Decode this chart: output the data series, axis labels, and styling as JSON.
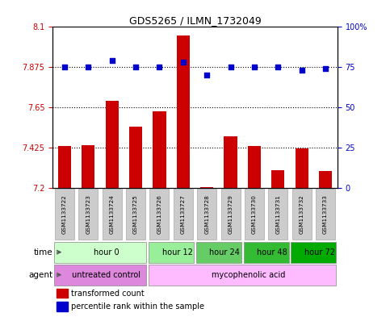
{
  "title": "GDS5265 / ILMN_1732049",
  "samples": [
    "GSM1133722",
    "GSM1133723",
    "GSM1133724",
    "GSM1133725",
    "GSM1133726",
    "GSM1133727",
    "GSM1133728",
    "GSM1133729",
    "GSM1133730",
    "GSM1133731",
    "GSM1133732",
    "GSM1133733"
  ],
  "bar_values": [
    7.435,
    7.44,
    7.685,
    7.545,
    7.63,
    8.05,
    7.205,
    7.49,
    7.435,
    7.3,
    7.42,
    7.295
  ],
  "dot_values": [
    75,
    75,
    79,
    75,
    75,
    78,
    70,
    75,
    75,
    75,
    73,
    74
  ],
  "bar_color": "#cc0000",
  "dot_color": "#0000cc",
  "bar_bottom": 7.2,
  "ylim_left": [
    7.2,
    8.1
  ],
  "ylim_right": [
    0,
    100
  ],
  "yticks_left": [
    7.2,
    7.425,
    7.65,
    7.875,
    8.1
  ],
  "yticks_right": [
    0,
    25,
    50,
    75,
    100
  ],
  "ytick_labels_left": [
    "7.2",
    "7.425",
    "7.65",
    "7.875",
    "8.1"
  ],
  "ytick_labels_right": [
    "0",
    "25",
    "50",
    "75",
    "100%"
  ],
  "hlines": [
    7.425,
    7.65,
    7.875
  ],
  "time_groups": [
    {
      "label": "hour 0",
      "start": 0,
      "end": 4,
      "color": "#ccffcc"
    },
    {
      "label": "hour 12",
      "start": 4,
      "end": 6,
      "color": "#99ee99"
    },
    {
      "label": "hour 24",
      "start": 6,
      "end": 8,
      "color": "#66cc66"
    },
    {
      "label": "hour 48",
      "start": 8,
      "end": 10,
      "color": "#33bb33"
    },
    {
      "label": "hour 72",
      "start": 10,
      "end": 12,
      "color": "#00aa00"
    }
  ],
  "agent_groups": [
    {
      "label": "untreated control",
      "start": 0,
      "end": 4,
      "color": "#dd88dd"
    },
    {
      "label": "mycophenolic acid",
      "start": 4,
      "end": 12,
      "color": "#ffbbff"
    }
  ],
  "legend_bar_label": "transformed count",
  "legend_dot_label": "percentile rank within the sample",
  "background_color": "#ffffff",
  "grid_color": "#000000",
  "tick_color_left": "#cc0000",
  "tick_color_right": "#0000cc",
  "sample_box_color": "#cccccc",
  "sample_box_edge": "#aaaaaa"
}
